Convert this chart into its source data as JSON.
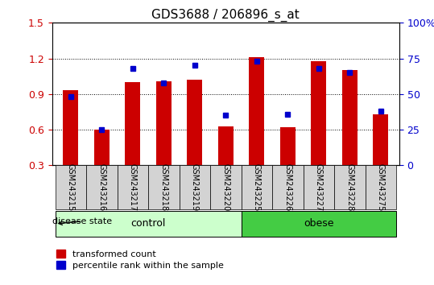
{
  "title": "GDS3688 / 206896_s_at",
  "samples": [
    "GSM243215",
    "GSM243216",
    "GSM243217",
    "GSM243218",
    "GSM243219",
    "GSM243220",
    "GSM243225",
    "GSM243226",
    "GSM243227",
    "GSM243228",
    "GSM243275"
  ],
  "red_values": [
    0.93,
    0.6,
    1.0,
    1.01,
    1.02,
    0.63,
    1.21,
    0.62,
    1.18,
    1.1,
    0.73
  ],
  "blue_values": [
    48,
    25,
    68,
    58,
    70,
    35,
    73,
    36,
    68,
    65,
    38
  ],
  "ymin": 0.3,
  "ymax": 1.5,
  "y2min": 0,
  "y2max": 100,
  "yticks": [
    0.3,
    0.6,
    0.9,
    1.2,
    1.5
  ],
  "y2ticks": [
    0,
    25,
    50,
    75,
    100
  ],
  "y2ticklabels": [
    "0",
    "25",
    "50",
    "75",
    "100%"
  ],
  "bar_color": "#cc0000",
  "dot_color": "#0000cc",
  "control_group": [
    0,
    1,
    2,
    3,
    4,
    5
  ],
  "obese_group": [
    6,
    7,
    8,
    9,
    10
  ],
  "control_label": "control",
  "obese_label": "obese",
  "control_color": "#ccffcc",
  "obese_color": "#44cc44",
  "group_label": "disease state",
  "legend_red": "transformed count",
  "legend_blue": "percentile rank within the sample",
  "bar_width": 0.5,
  "bar_baseline": 0.3
}
